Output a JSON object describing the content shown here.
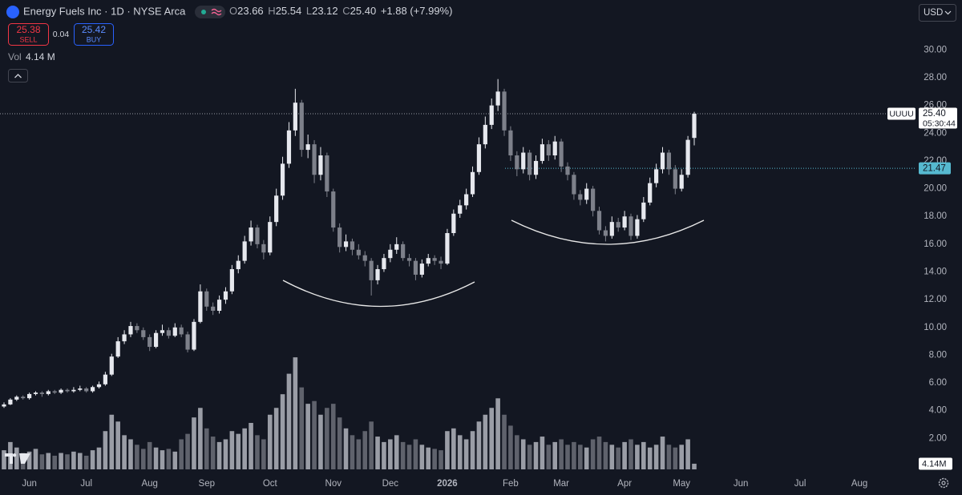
{
  "header": {
    "title": "Energy Fuels Inc · 1D · NYSE Arca",
    "ohlc": [
      {
        "label": "O",
        "value": "23.66"
      },
      {
        "label": "H",
        "value": "25.54"
      },
      {
        "label": "L",
        "value": "23.12"
      },
      {
        "label": "C",
        "value": "25.40"
      }
    ],
    "change": "+1.88 (+7.99%)"
  },
  "trade": {
    "sell_price": "25.38",
    "sell": "SELL",
    "spread": "0.04",
    "buy_price": "25.42",
    "buy": "BUY"
  },
  "volume_legend": {
    "label": "Vol",
    "value": "4.14 M"
  },
  "currency": "USD",
  "chart_data": {
    "type": "candlestick",
    "categories": [
      null,
      null,
      null,
      null,
      "Jun",
      null,
      null,
      null,
      null,
      null,
      null,
      null,
      null,
      "Jul",
      null,
      null,
      null,
      null,
      null,
      null,
      null,
      null,
      null,
      "Aug",
      null,
      null,
      null,
      null,
      null,
      null,
      null,
      null,
      "Sep",
      null,
      null,
      null,
      null,
      null,
      null,
      null,
      null,
      null,
      "Oct",
      null,
      null,
      null,
      null,
      null,
      null,
      null,
      null,
      null,
      "Nov",
      null,
      null,
      null,
      null,
      null,
      null,
      null,
      null,
      "Dec",
      null,
      null,
      null,
      null,
      null,
      null,
      null,
      null,
      "2026",
      null,
      null,
      null,
      null,
      null,
      null,
      null,
      null,
      null,
      "Feb",
      null,
      null,
      null,
      null,
      null,
      null,
      null,
      "Mar",
      null,
      null,
      null,
      null,
      null,
      null,
      null,
      null,
      null,
      "Apr",
      null,
      null,
      null,
      null,
      null,
      null,
      null,
      null,
      "May",
      null,
      null
    ],
    "future_months": [
      "Jun",
      "Jul",
      "Aug"
    ],
    "open": [
      4.3,
      4.45,
      4.8,
      5,
      4.9,
      5.2,
      5.3,
      5.2,
      5.4,
      5.3,
      5.5,
      5.4,
      5.5,
      5.6,
      5.4,
      5.7,
      5.9,
      6.6,
      7.9,
      9,
      9.5,
      10.1,
      9.8,
      9.3,
      8.6,
      9.6,
      9.8,
      9.4,
      10,
      9.5,
      8.4,
      10.4,
      12.6,
      11.5,
      11.2,
      12,
      12.6,
      14.2,
      14.8,
      16.2,
      17.2,
      16,
      15.4,
      17.6,
      19.5,
      21.8,
      24.2,
      26.2,
      22.8,
      23.2,
      21,
      22.4,
      19.8,
      17.2,
      15.8,
      16.2,
      15.6,
      15.2,
      14.8,
      13.4,
      14.2,
      15,
      15.6,
      16,
      15,
      14.8,
      13.8,
      14.6,
      15,
      14.8,
      14.6,
      16.8,
      18.2,
      18.8,
      19.6,
      21.2,
      23.2,
      24.6,
      26,
      27,
      24.2,
      22.4,
      21.4,
      22.6,
      21,
      22,
      23.2,
      22.4,
      23.4,
      21.6,
      21,
      19.6,
      19.2,
      20,
      18.4,
      17,
      16.6,
      17.6,
      17.2,
      18,
      16.6,
      17.8,
      19,
      20.4,
      21.4,
      22.6,
      21.4,
      20,
      21,
      23.66
    ],
    "high": [
      4.6,
      4.9,
      5.1,
      5.1,
      5.3,
      5.4,
      5.4,
      5.5,
      5.5,
      5.6,
      5.6,
      5.7,
      5.8,
      5.7,
      5.8,
      6.1,
      6.8,
      8.1,
      9.3,
      9.8,
      10.4,
      10.3,
      10,
      9.5,
      9.8,
      10.2,
      10,
      10.3,
      10.2,
      9.7,
      10.6,
      13.1,
      12.8,
      11.8,
      12.3,
      12.9,
      14.5,
      15.2,
      16.6,
      17.7,
      17.4,
      16.3,
      18,
      20,
      22.3,
      24.8,
      27.2,
      26.4,
      23.9,
      23.5,
      23,
      22.6,
      20,
      17.5,
      16.7,
      16.4,
      16,
      15.5,
      15,
      14.5,
      15.3,
      16,
      16.5,
      16.2,
      15.3,
      15,
      14.9,
      15.3,
      15.2,
      15.1,
      17.1,
      18.5,
      19.2,
      20,
      21.6,
      23.7,
      25.2,
      26.5,
      27.9,
      27.2,
      24.5,
      22.7,
      23,
      22.8,
      22.4,
      23.6,
      23.5,
      23.8,
      23.6,
      21.9,
      21.2,
      19.9,
      20.4,
      20.2,
      18.7,
      17.3,
      18,
      17.9,
      18.4,
      18.2,
      18.1,
      19.4,
      20.8,
      21.8,
      23,
      22.8,
      21.7,
      21.4,
      23.8,
      25.54
    ],
    "low": [
      4.2,
      4.4,
      4.7,
      4.8,
      4.8,
      5.1,
      5,
      5.1,
      5.2,
      5.2,
      5.3,
      5.3,
      5.4,
      5.3,
      5.3,
      5.6,
      5.8,
      6.5,
      7.8,
      8.8,
      9.3,
      9.6,
      9.1,
      8.3,
      8.5,
      9.4,
      9.2,
      9.3,
      9.3,
      8.2,
      8.3,
      10.3,
      11.2,
      10.9,
      11,
      11.7,
      12.4,
      13.9,
      14.6,
      15.9,
      15.7,
      14.9,
      15.2,
      17.3,
      19.2,
      21.5,
      23.8,
      22.3,
      22.2,
      20.4,
      20.6,
      19.4,
      16.9,
      15.4,
      15.5,
      15.2,
      14.9,
      14.4,
      12.3,
      13.1,
      14,
      14.7,
      15.3,
      14.8,
      14.4,
      13.4,
      13.6,
      14.4,
      14.5,
      14.2,
      14.5,
      16.6,
      17.9,
      18.5,
      19.4,
      21,
      22.9,
      24.3,
      25.6,
      23.8,
      22,
      20.9,
      21.1,
      20.6,
      20.7,
      21.8,
      22,
      22.1,
      21.2,
      20.6,
      19.2,
      18.8,
      18.9,
      18,
      16.7,
      16.2,
      16.4,
      16.9,
      17,
      16.3,
      16.4,
      17.6,
      18.8,
      20.1,
      21.1,
      21,
      19.6,
      19.8,
      20.8,
      23.12
    ],
    "close": [
      4.45,
      4.8,
      5,
      4.9,
      5.2,
      5.3,
      5.2,
      5.4,
      5.3,
      5.5,
      5.4,
      5.5,
      5.6,
      5.4,
      5.7,
      5.9,
      6.6,
      7.9,
      9,
      9.5,
      10.1,
      9.8,
      9.3,
      8.6,
      9.6,
      9.8,
      9.4,
      10,
      9.5,
      8.4,
      10.4,
      12.6,
      11.5,
      11.2,
      12,
      12.6,
      14.2,
      14.8,
      16.2,
      17.2,
      16,
      15.4,
      17.6,
      19.5,
      21.8,
      24.2,
      26.2,
      22.8,
      23.2,
      21,
      22.4,
      19.8,
      17.2,
      15.8,
      16.2,
      15.6,
      15.2,
      14.8,
      13.4,
      14.2,
      15,
      15.6,
      16,
      15,
      14.8,
      13.8,
      14.6,
      15,
      14.8,
      14.6,
      16.8,
      18.2,
      18.8,
      19.6,
      21.2,
      23.2,
      24.6,
      26,
      27,
      24.2,
      22.4,
      21.4,
      22.6,
      21,
      22,
      23.2,
      22.4,
      23.4,
      21.6,
      21,
      19.6,
      19.2,
      20,
      18.4,
      17,
      16.6,
      17.6,
      17.2,
      18,
      16.6,
      17.8,
      19,
      20.4,
      21.4,
      22.6,
      21.4,
      20,
      21,
      23.52,
      25.4
    ],
    "volume": [
      14,
      20,
      16,
      12,
      13,
      15,
      11,
      12,
      10,
      12,
      11,
      13,
      12,
      10,
      14,
      16,
      28,
      40,
      35,
      25,
      22,
      18,
      15,
      20,
      16,
      14,
      15,
      13,
      22,
      26,
      38,
      45,
      30,
      24,
      20,
      22,
      28,
      26,
      30,
      34,
      25,
      22,
      40,
      45,
      55,
      70,
      82,
      60,
      48,
      50,
      40,
      45,
      48,
      38,
      30,
      25,
      22,
      28,
      35,
      24,
      20,
      22,
      25,
      20,
      18,
      22,
      18,
      16,
      15,
      14,
      28,
      30,
      25,
      22,
      28,
      35,
      40,
      45,
      52,
      40,
      32,
      25,
      22,
      18,
      20,
      24,
      18,
      20,
      22,
      18,
      20,
      18,
      16,
      22,
      24,
      20,
      18,
      16,
      20,
      22,
      18,
      20,
      16,
      18,
      24,
      18,
      16,
      18,
      22,
      4.14
    ],
    "volume_lim": [
      0,
      85
    ],
    "volume_tag": "4.14M",
    "up_color": "#e6e8ee",
    "down_color": "#7d808a",
    "volume_up_color": "#9a9da6",
    "volume_down_color": "#5f626c",
    "ylim": [
      0,
      33.6
    ],
    "yticks": [
      {
        "value": 2,
        "label": "2.00"
      },
      {
        "value": 4,
        "label": "4.00"
      },
      {
        "value": 6,
        "label": "6.00"
      },
      {
        "value": 8,
        "label": "8.00"
      },
      {
        "value": 10,
        "label": "10.00"
      },
      {
        "value": 12,
        "label": "12.00"
      },
      {
        "value": 14,
        "label": "14.00"
      },
      {
        "value": 16,
        "label": "16.00"
      },
      {
        "value": 18,
        "label": "18.00"
      },
      {
        "value": 20,
        "label": "20.00"
      },
      {
        "value": 22,
        "label": "22.00"
      },
      {
        "value": 24,
        "label": "24.00"
      },
      {
        "value": 26,
        "label": "26.00"
      },
      {
        "value": 28,
        "label": "28.00"
      },
      {
        "value": 30,
        "label": "30.00"
      }
    ],
    "last_price": {
      "symbol": "UUUU",
      "value": 25.4,
      "label": "25.40",
      "countdown": "05:30:44",
      "color": "#9598a1"
    },
    "horizontal_line": {
      "value": 21.47,
      "label": "21.47",
      "color": "#56b9d0"
    }
  }
}
